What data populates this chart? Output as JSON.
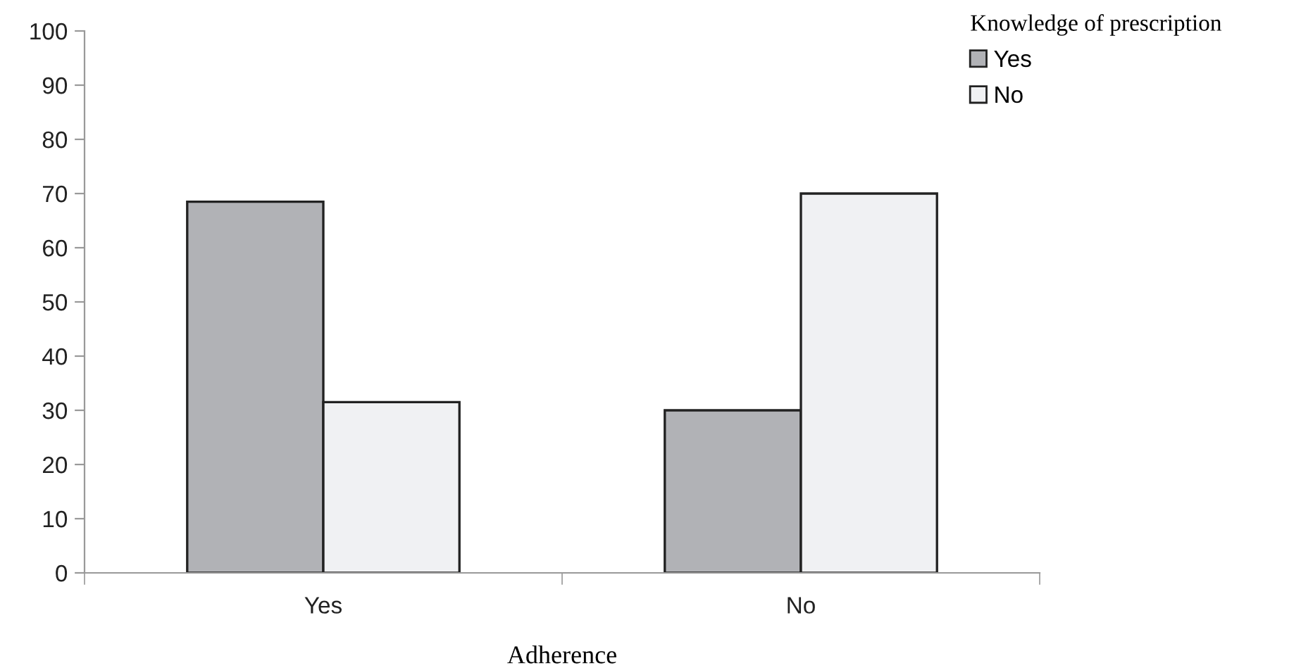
{
  "chart_data": {
    "type": "bar",
    "xlabel": "Adherence",
    "legend_title": "Knowledge of prescription",
    "categories": [
      "Yes",
      "No"
    ],
    "series": [
      {
        "name": "Yes",
        "color": "#b1b2b6",
        "values": [
          68.5,
          30
        ]
      },
      {
        "name": "No",
        "color": "#f0f1f3",
        "values": [
          31.5,
          70
        ]
      }
    ],
    "ylim": [
      0,
      100
    ],
    "yticks": [
      0,
      10,
      20,
      30,
      40,
      50,
      60,
      70,
      80,
      90,
      100
    ],
    "grid": false,
    "legend": "top right"
  }
}
